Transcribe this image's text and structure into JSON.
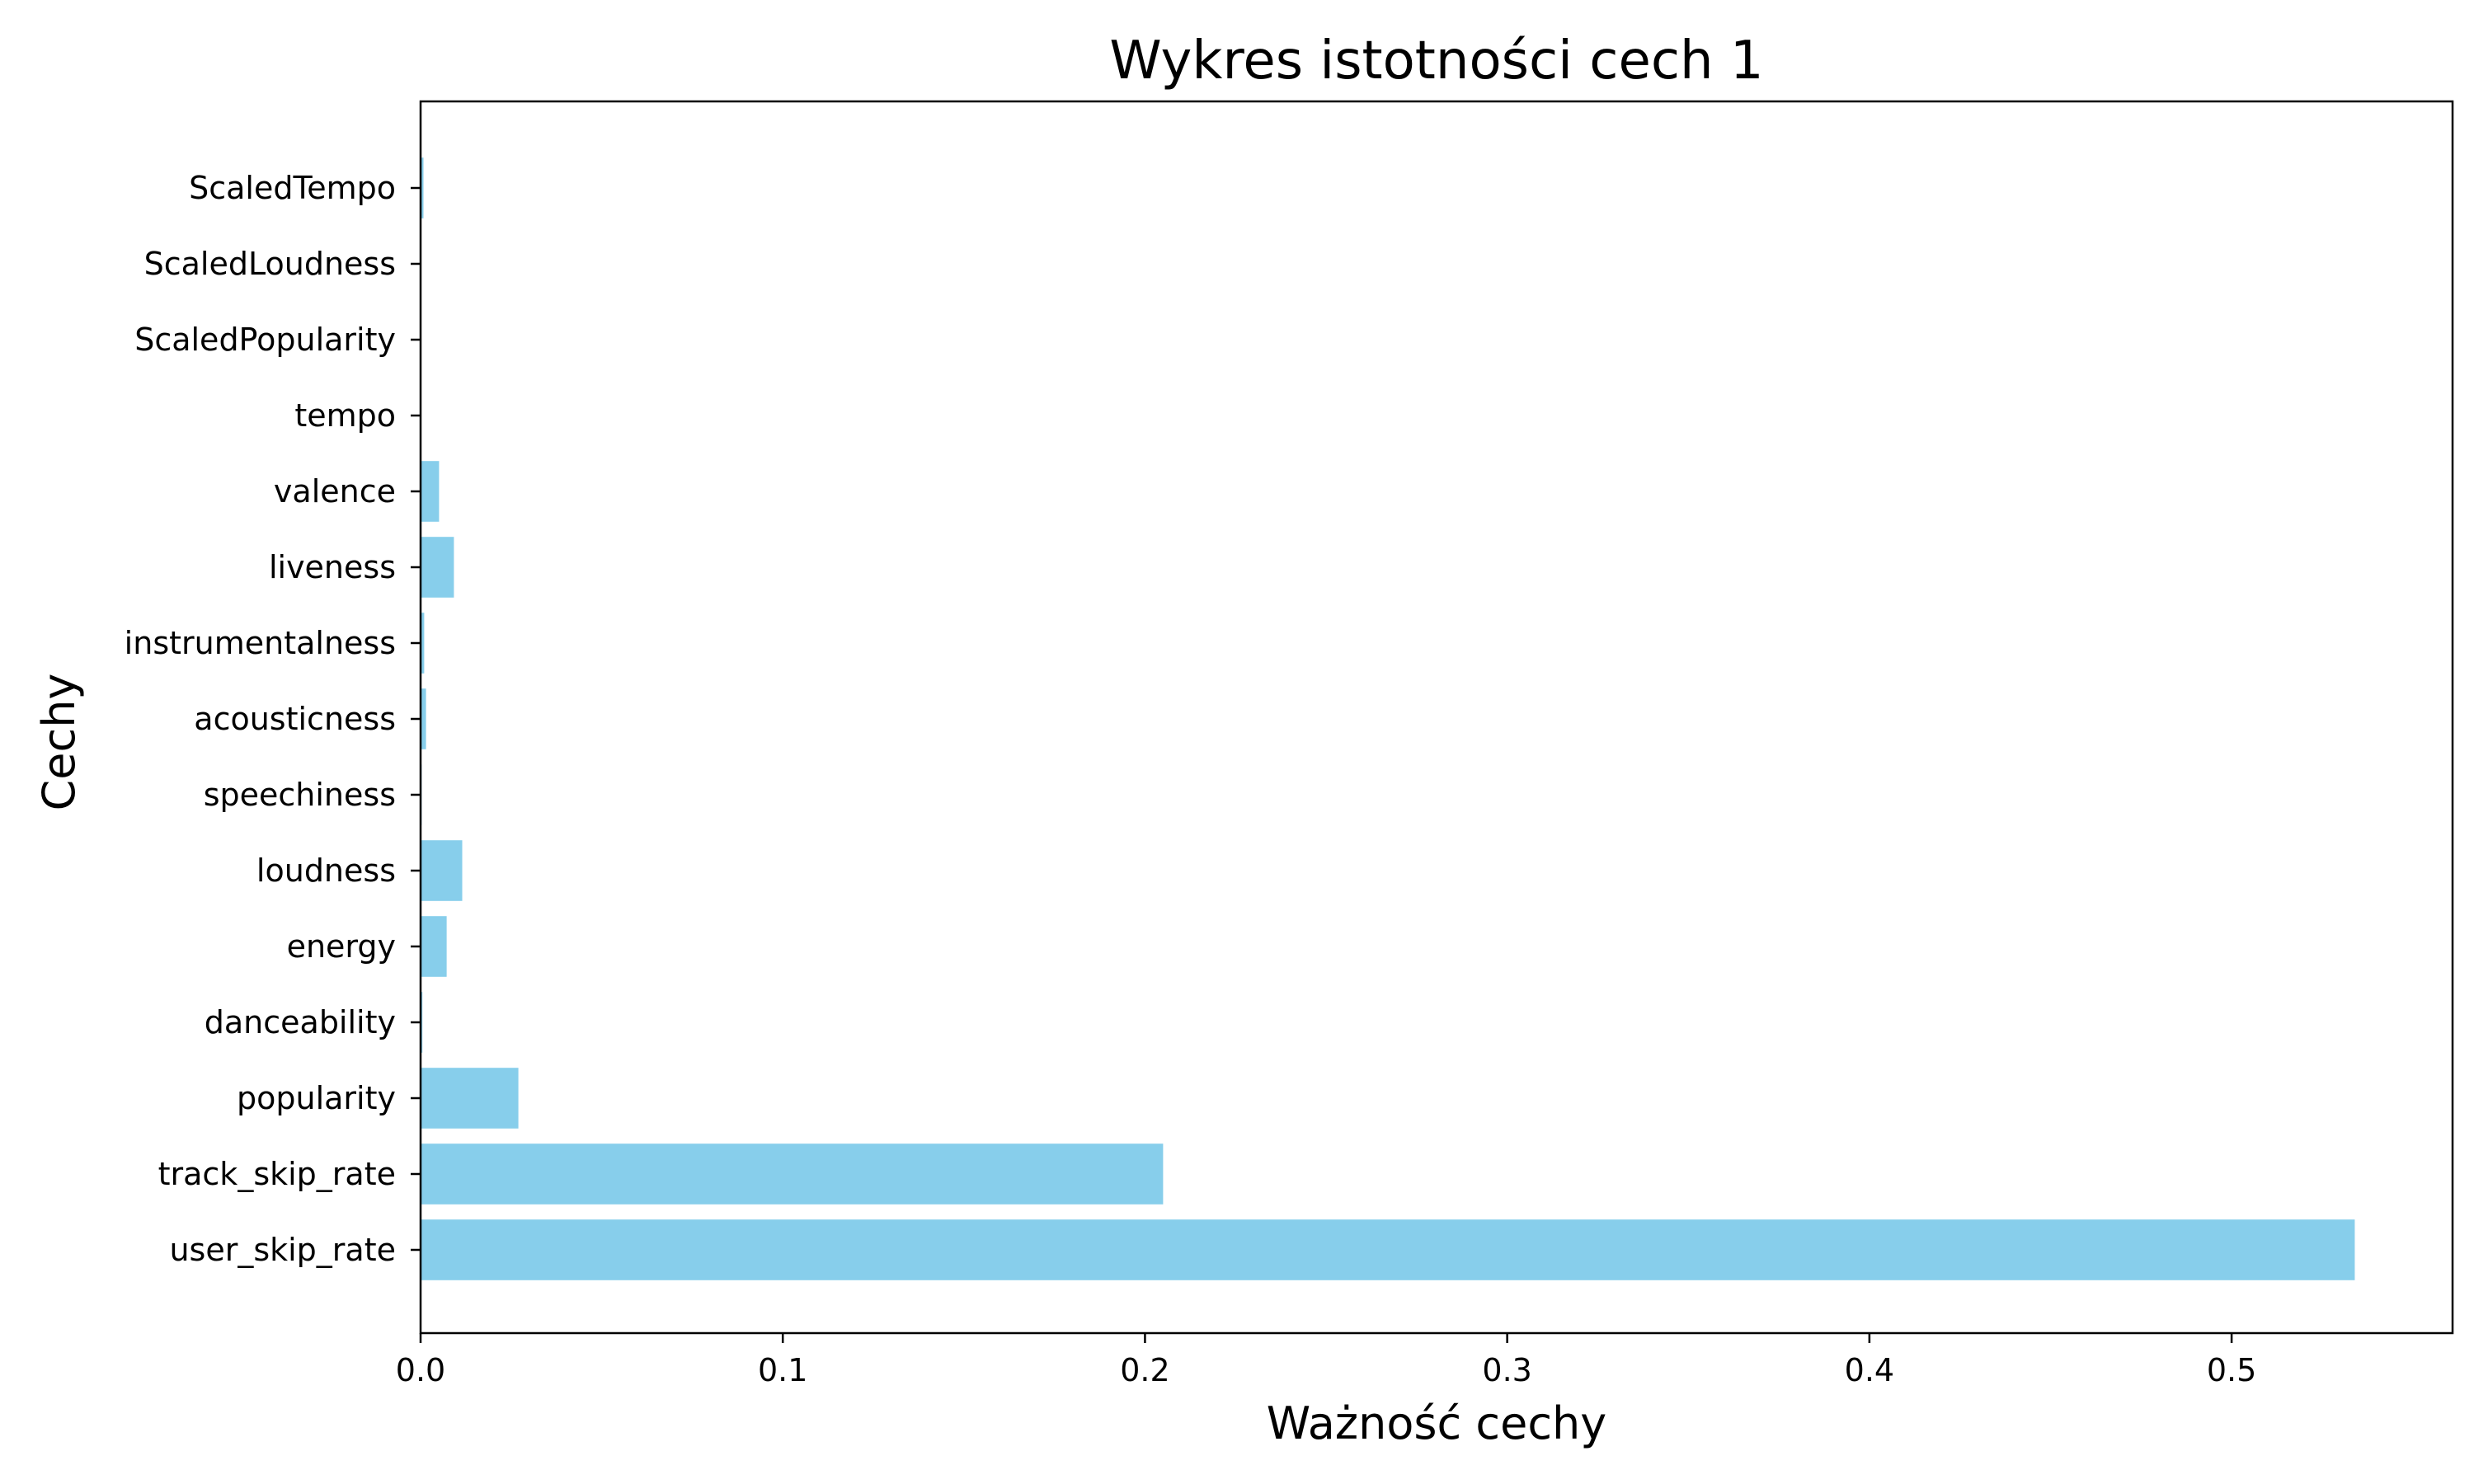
{
  "chart_data": {
    "type": "bar",
    "orientation": "horizontal",
    "title": "Wykres istotności cech 1",
    "xlabel": "Ważność cechy",
    "ylabel": "Cechy",
    "categories": [
      "user_skip_rate",
      "track_skip_rate",
      "popularity",
      "danceability",
      "energy",
      "loudness",
      "speechiness",
      "acousticness",
      "instrumentalness",
      "liveness",
      "valence",
      "tempo",
      "ScaledPopularity",
      "ScaledLoudness",
      "ScaledTempo"
    ],
    "values": [
      0.534,
      0.205,
      0.027,
      0.0005,
      0.0072,
      0.0115,
      0.0003,
      0.0015,
      0.001,
      0.0092,
      0.0051,
      0.0002,
      0.0002,
      0.0002,
      0.0008
    ],
    "xlim": [
      0,
      0.561
    ],
    "xticks": [
      0.0,
      0.1,
      0.2,
      0.3,
      0.4,
      0.5
    ],
    "xtick_labels": [
      "0.0",
      "0.1",
      "0.2",
      "0.3",
      "0.4",
      "0.5"
    ],
    "grid": false,
    "legend": "none",
    "bar_color": "#87ceeb"
  }
}
